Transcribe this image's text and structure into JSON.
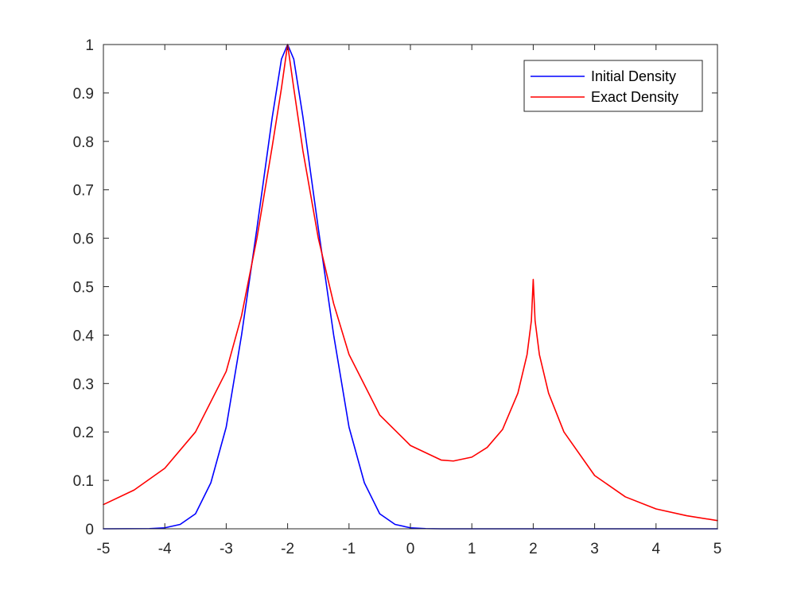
{
  "chart_data": {
    "type": "line",
    "title": "",
    "xlabel": "",
    "ylabel": "",
    "xlim": [
      -5,
      5
    ],
    "ylim": [
      0,
      1
    ],
    "x_ticks": [
      -5,
      -4,
      -3,
      -2,
      -1,
      0,
      1,
      2,
      3,
      4,
      5
    ],
    "y_ticks": [
      0,
      0.1,
      0.2,
      0.3,
      0.4,
      0.5,
      0.6,
      0.7,
      0.8,
      0.9,
      1
    ],
    "x_tick_labels": [
      "-5",
      "-4",
      "-3",
      "-2",
      "-1",
      "0",
      "1",
      "2",
      "3",
      "4",
      "5"
    ],
    "y_tick_labels": [
      "0",
      "0.1",
      "0.2",
      "0.3",
      "0.4",
      "0.5",
      "0.6",
      "0.7",
      "0.8",
      "0.9",
      "1"
    ],
    "grid": false,
    "legend": {
      "position": "top-right"
    },
    "series": [
      {
        "name": "Initial Density",
        "color": "#0000ff",
        "points": [
          [
            -5,
            0
          ],
          [
            -4.25,
            0.0004
          ],
          [
            -4,
            0.002
          ],
          [
            -3.75,
            0.009
          ],
          [
            -3.5,
            0.031
          ],
          [
            -3.25,
            0.095
          ],
          [
            -3,
            0.21
          ],
          [
            -2.75,
            0.4
          ],
          [
            -2.5,
            0.62
          ],
          [
            -2.25,
            0.85
          ],
          [
            -2.1,
            0.97
          ],
          [
            -2,
            1.0
          ],
          [
            -1.9,
            0.97
          ],
          [
            -1.75,
            0.85
          ],
          [
            -1.5,
            0.62
          ],
          [
            -1.25,
            0.4
          ],
          [
            -1,
            0.21
          ],
          [
            -0.75,
            0.095
          ],
          [
            -0.5,
            0.031
          ],
          [
            -0.25,
            0.009
          ],
          [
            0,
            0.002
          ],
          [
            0.25,
            0.0004
          ],
          [
            0.5,
            0
          ],
          [
            5,
            0
          ]
        ]
      },
      {
        "name": "Exact Density",
        "color": "#ff0000",
        "points": [
          [
            -5,
            0.05
          ],
          [
            -4.5,
            0.08
          ],
          [
            -4,
            0.125
          ],
          [
            -3.5,
            0.2
          ],
          [
            -3,
            0.325
          ],
          [
            -2.75,
            0.44
          ],
          [
            -2.5,
            0.6
          ],
          [
            -2.25,
            0.79
          ],
          [
            -2.1,
            0.91
          ],
          [
            -2,
            1.0
          ],
          [
            -1.9,
            0.91
          ],
          [
            -1.75,
            0.78
          ],
          [
            -1.5,
            0.6
          ],
          [
            -1.25,
            0.465
          ],
          [
            -1,
            0.36
          ],
          [
            -0.5,
            0.235
          ],
          [
            0,
            0.172
          ],
          [
            0.5,
            0.142
          ],
          [
            0.7,
            0.14
          ],
          [
            1,
            0.148
          ],
          [
            1.25,
            0.168
          ],
          [
            1.5,
            0.205
          ],
          [
            1.75,
            0.28
          ],
          [
            1.9,
            0.36
          ],
          [
            1.97,
            0.43
          ],
          [
            2,
            0.515
          ],
          [
            2.03,
            0.43
          ],
          [
            2.1,
            0.36
          ],
          [
            2.25,
            0.28
          ],
          [
            2.5,
            0.2
          ],
          [
            3,
            0.11
          ],
          [
            3.5,
            0.066
          ],
          [
            4,
            0.041
          ],
          [
            4.5,
            0.027
          ],
          [
            5,
            0.017
          ]
        ]
      }
    ]
  }
}
